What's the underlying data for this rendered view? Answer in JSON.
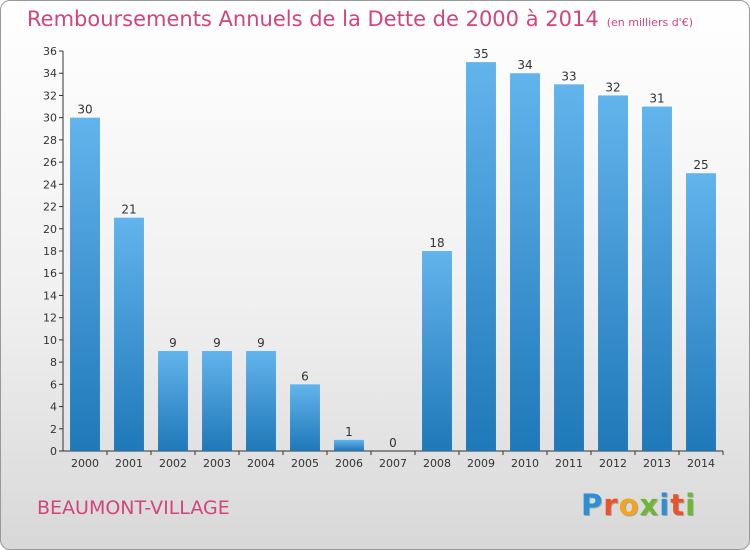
{
  "header": {
    "title": "Remboursements Annuels de la Dette de 2000 à 2014",
    "subtitle": "(en milliers d'€)"
  },
  "footer": {
    "town": "BEAUMONT-VILLAGE",
    "logo": {
      "letters": [
        "P",
        "r",
        "o",
        "x",
        "i",
        "t",
        "i"
      ]
    }
  },
  "colors": {
    "title": "#d2447d",
    "bar_top": "#62b4ec",
    "bar_bottom": "#1f78b8",
    "logo": [
      "#2a8fd4",
      "#e8552c",
      "#f2a51f",
      "#6fb632",
      "#2a8fd4",
      "#e8552c",
      "#6fb632"
    ]
  },
  "chart_data": {
    "type": "bar",
    "title": "Remboursements Annuels de la Dette de 2000 à 2014",
    "subtitle": "(en milliers d'€)",
    "categories": [
      "2000",
      "2001",
      "2002",
      "2003",
      "2004",
      "2005",
      "2006",
      "2007",
      "2008",
      "2009",
      "2010",
      "2011",
      "2012",
      "2013",
      "2014"
    ],
    "values": [
      30,
      21,
      9,
      9,
      9,
      6,
      1,
      0,
      18,
      35,
      34,
      33,
      32,
      31,
      25
    ],
    "xlabel": "",
    "ylabel": "",
    "ylim": [
      0,
      36
    ],
    "yticks": [
      0,
      2,
      4,
      6,
      8,
      10,
      12,
      14,
      16,
      18,
      20,
      22,
      24,
      26,
      28,
      30,
      32,
      34,
      36
    ],
    "grid": false,
    "data_labels": true
  }
}
